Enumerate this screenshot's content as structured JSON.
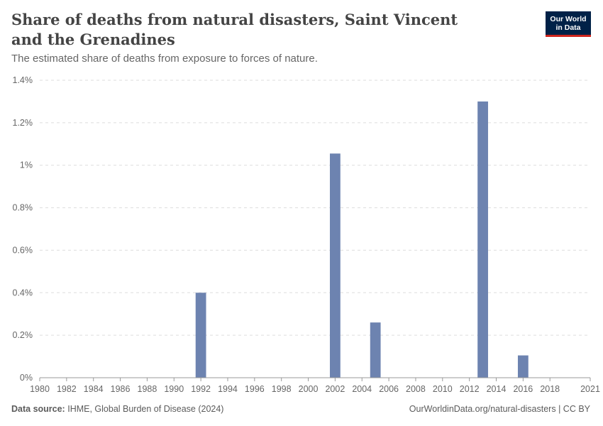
{
  "header": {
    "title": "Share of deaths from natural disasters, Saint Vincent and the Grenadines",
    "subtitle": "The estimated share of deaths from exposure to forces of nature."
  },
  "logo": {
    "line1": "Our World",
    "line2": "in Data"
  },
  "footer": {
    "source_label": "Data source:",
    "source_text": "IHME, Global Burden of Disease (2024)",
    "link_text": "OurWorldinData.org/natural-disasters | CC BY"
  },
  "colors": {
    "bar": "#6d83b0",
    "brand_bg": "#002147",
    "brand_accent": "#ce261e"
  },
  "chart_data": {
    "type": "bar",
    "xlabel": "",
    "ylabel": "",
    "xlim": [
      1980,
      2021
    ],
    "ylim": [
      0,
      1.4
    ],
    "y_ticks": [
      0,
      0.2,
      0.4,
      0.6,
      0.8,
      1.0,
      1.2,
      1.4
    ],
    "y_tick_labels": [
      "0%",
      "0.2%",
      "0.4%",
      "0.6%",
      "0.8%",
      "1%",
      "1.2%",
      "1.4%"
    ],
    "x_ticks": [
      1980,
      1982,
      1984,
      1986,
      1988,
      1990,
      1992,
      1994,
      1996,
      1998,
      2000,
      2002,
      2004,
      2006,
      2008,
      2010,
      2012,
      2014,
      2016,
      2018,
      2021
    ],
    "grid": true,
    "series": [
      {
        "x": [
          1992,
          2002,
          2005,
          2013,
          2016
        ],
        "values": [
          0.4,
          1.055,
          0.26,
          1.3,
          0.105
        ]
      }
    ]
  }
}
